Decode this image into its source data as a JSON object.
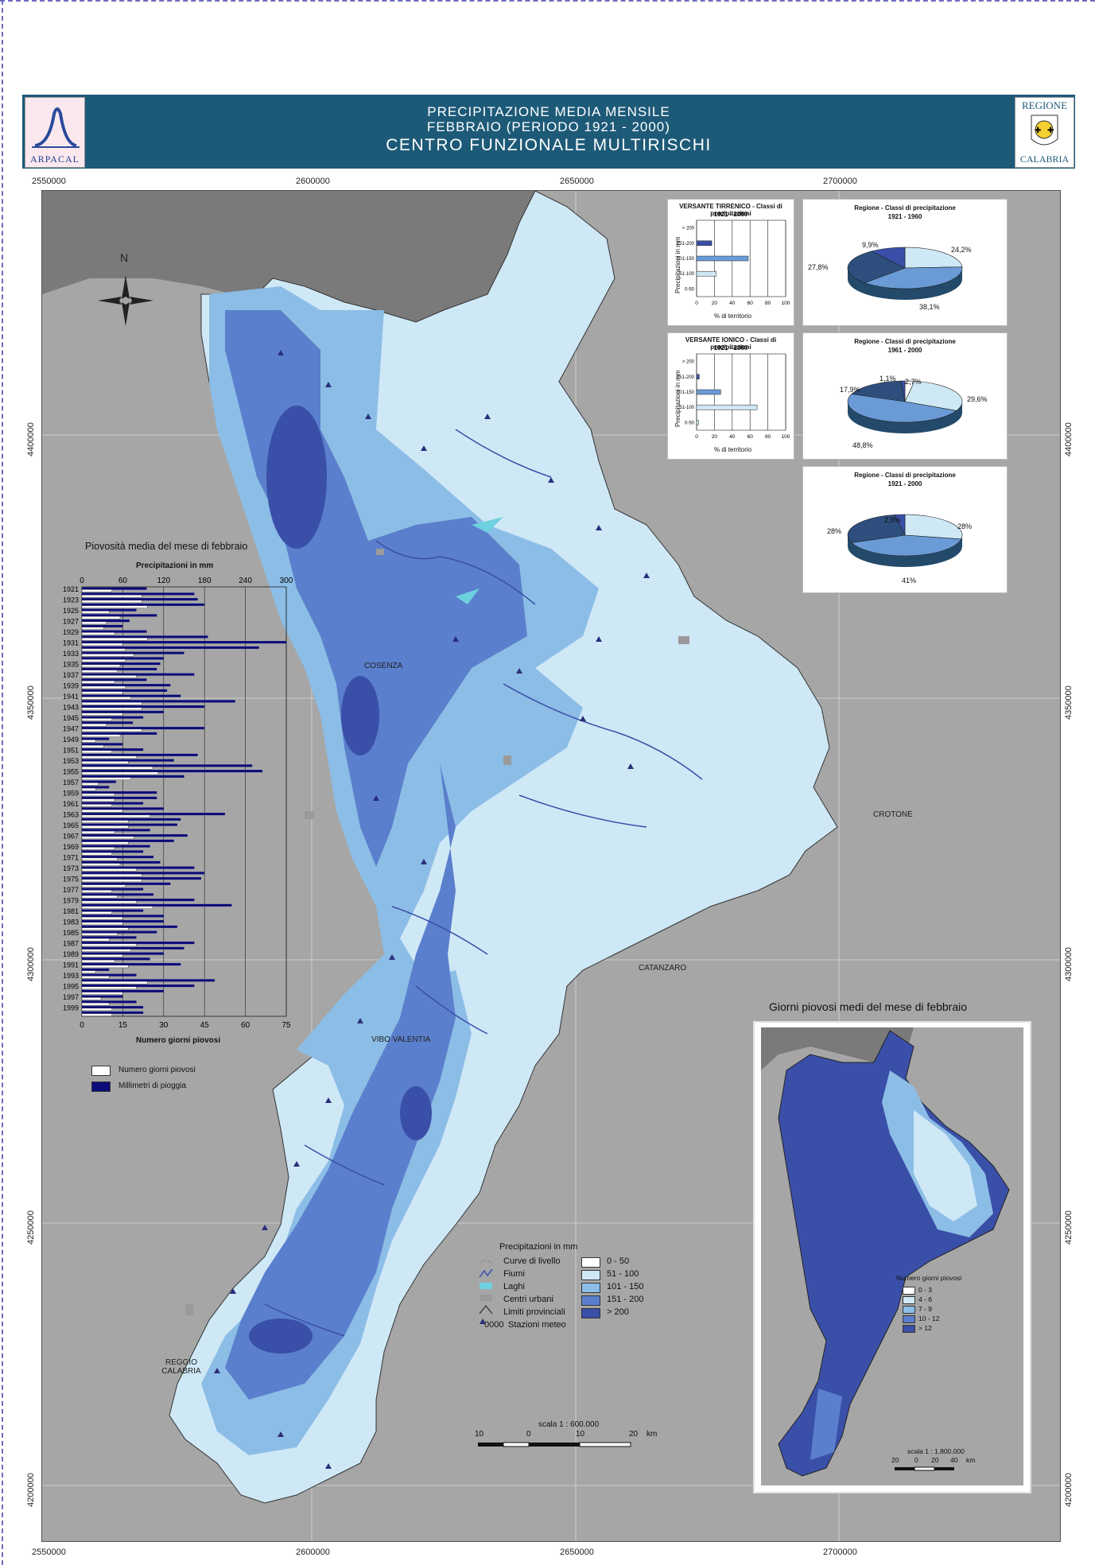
{
  "header": {
    "line1": "PRECIPITAZIONE MEDIA MENSILE",
    "line2": "FEBBRAIO (PERIODO 1921 - 2000)",
    "line3": "CENTRO FUNZIONALE MULTIRISCHI",
    "logo_left": "ARPACAL",
    "logo_right_top": "REGIONE",
    "logo_right_bottom": "CALABRIA"
  },
  "axes": {
    "top": [
      "2550000",
      "2600000",
      "2650000",
      "2700000"
    ],
    "bottom": [
      "2550000",
      "2600000",
      "2650000",
      "2700000"
    ],
    "left": [
      "4400000",
      "4350000",
      "4300000",
      "4250000",
      "4200000"
    ],
    "right": [
      "4400000",
      "4350000",
      "4300000",
      "4250000",
      "4200000"
    ]
  },
  "north": "N",
  "cities": {
    "cosenza": "COSENZA",
    "crotone": "CROTONE",
    "catanzaro": "CATANZARO",
    "vibo": "VIBO VALENTIA",
    "reggio": "REGGIO CALABRIA"
  },
  "bar_tirreno": {
    "title1": "VERSANTE TIRRENICO - Classi di precipitazioni",
    "title2": "1921 - 2000",
    "ylabel": "Precipitazioni in mm",
    "xlabel": "% di territorio",
    "categories": [
      "> 200",
      "151-200",
      "101-150",
      "51-100",
      "0-50"
    ],
    "values": [
      0,
      17,
      58,
      22,
      0
    ],
    "ticks": [
      "0",
      "20",
      "40",
      "60",
      "80",
      "100"
    ]
  },
  "bar_ionico": {
    "title1": "VERSANTE IONICO - Classi di precipitazioni",
    "title2": "1921 - 2000",
    "ylabel": "Precipitazioni in mm",
    "xlabel": "% di territorio",
    "categories": [
      "> 200",
      "151-200",
      "101-150",
      "51-100",
      "0-50"
    ],
    "values": [
      0,
      3,
      27,
      68,
      2
    ],
    "ticks": [
      "0",
      "20",
      "40",
      "60",
      "80",
      "100"
    ]
  },
  "pie1": {
    "title1": "Regione - Classi di precipitazione",
    "title2": "1921 - 1960",
    "labels": [
      "24,2%",
      "38,1%",
      "27,8%",
      "9,9%"
    ],
    "values": [
      24.2,
      38.1,
      27.8,
      9.9
    ]
  },
  "pie2": {
    "title1": "Regione - Classi di precipitazione",
    "title2": "1961 - 2000",
    "labels": [
      "2,7%",
      "29,6%",
      "48,8%",
      "17,9%",
      "1,1%"
    ],
    "values": [
      2.7,
      29.6,
      48.8,
      17.9,
      1.1
    ]
  },
  "pie3": {
    "title1": "Regione - Classi di precipitazione",
    "title2": "1921 - 2000",
    "labels": [
      "28%",
      "41%",
      "28%",
      "2,9%"
    ],
    "values": [
      28,
      41,
      28,
      2.9
    ]
  },
  "annual": {
    "title": "Piovosità media del mese di febbraio",
    "top_label": "Precipitazioni in mm",
    "top_ticks": [
      "0",
      "60",
      "120",
      "180",
      "240",
      "300"
    ],
    "bottom_label": "Numero giorni piovosi",
    "bottom_ticks": [
      "0",
      "15",
      "30",
      "45",
      "60",
      "75"
    ],
    "year_labels": [
      "1921",
      "1923",
      "1925",
      "1927",
      "1929",
      "1931",
      "1933",
      "1935",
      "1937",
      "1939",
      "1941",
      "1943",
      "1945",
      "1947",
      "1949",
      "1951",
      "1953",
      "1955",
      "1957",
      "1959",
      "1961",
      "1963",
      "1965",
      "1967",
      "1969",
      "1971",
      "1973",
      "1975",
      "1977",
      "1979",
      "1981",
      "1983",
      "1985",
      "1987",
      "1989",
      "1991",
      "1993",
      "1995",
      "1997",
      "1999"
    ],
    "legend_days": "Numero giorni piovosi",
    "legend_mm": "Millimetri di pioggia"
  },
  "chart_data": {
    "type": "bar",
    "title": "Piovosità media del mese di febbraio",
    "xlabel_top": "Precipitazioni in mm",
    "xlabel_bottom": "Numero giorni piovosi",
    "xlim_mm": [
      0,
      300
    ],
    "xlim_days": [
      0,
      75
    ],
    "years": [
      1921,
      1922,
      1923,
      1924,
      1925,
      1926,
      1927,
      1928,
      1929,
      1930,
      1931,
      1932,
      1933,
      1934,
      1935,
      1936,
      1937,
      1938,
      1939,
      1940,
      1941,
      1942,
      1943,
      1944,
      1945,
      1946,
      1947,
      1948,
      1949,
      1950,
      1951,
      1952,
      1953,
      1954,
      1955,
      1956,
      1957,
      1958,
      1959,
      1960,
      1961,
      1962,
      1963,
      1964,
      1965,
      1966,
      1967,
      1968,
      1969,
      1970,
      1971,
      1972,
      1973,
      1974,
      1975,
      1976,
      1977,
      1978,
      1979,
      1980,
      1981,
      1982,
      1983,
      1984,
      1985,
      1986,
      1987,
      1988,
      1989,
      1990,
      1991,
      1992,
      1993,
      1994,
      1995,
      1996,
      1997,
      1998,
      1999,
      2000
    ],
    "series": [
      {
        "name": "Millimetri di pioggia",
        "values": [
          95,
          165,
          170,
          180,
          80,
          110,
          70,
          60,
          95,
          185,
          300,
          260,
          150,
          120,
          115,
          110,
          165,
          95,
          130,
          125,
          145,
          225,
          180,
          120,
          90,
          75,
          180,
          110,
          40,
          60,
          90,
          170,
          135,
          250,
          265,
          150,
          50,
          40,
          110,
          110,
          90,
          120,
          210,
          145,
          140,
          100,
          155,
          135,
          100,
          90,
          105,
          115,
          165,
          180,
          175,
          130,
          90,
          105,
          165,
          220,
          90,
          120,
          120,
          140,
          110,
          80,
          165,
          150,
          120,
          100,
          145,
          40,
          80,
          195,
          165,
          120,
          60,
          80,
          90,
          90
        ]
      },
      {
        "name": "Numero giorni piovosi",
        "values": [
          11,
          22,
          22,
          24,
          10,
          14,
          9,
          8,
          12,
          24,
          15,
          16,
          19,
          16,
          14,
          13,
          20,
          12,
          16,
          15,
          18,
          22,
          22,
          15,
          11,
          9,
          22,
          14,
          5,
          8,
          11,
          20,
          17,
          26,
          28,
          18,
          6,
          5,
          12,
          12,
          11,
          15,
          25,
          17,
          17,
          12,
          19,
          17,
          12,
          11,
          13,
          14,
          20,
          22,
          22,
          16,
          11,
          13,
          20,
          26,
          11,
          15,
          15,
          17,
          13,
          10,
          20,
          18,
          15,
          12,
          17,
          5,
          10,
          24,
          20,
          15,
          7,
          10,
          11,
          11
        ]
      }
    ]
  },
  "inset": {
    "title": "Giorni piovosi medi del mese di febbraio",
    "legend_title": "Numero giorni piovosi",
    "classes": [
      "0 - 3",
      "4 - 6",
      "7 - 9",
      "10 - 12",
      "> 12"
    ],
    "colors": [
      "#ffffff",
      "#cfe8f6",
      "#8cbde6",
      "#5a7fcc",
      "#3a4fa8"
    ],
    "scale": "scala 1 : 1.800.000",
    "scale_ticks": [
      "20",
      "0",
      "20",
      "40",
      "km"
    ]
  },
  "legend": {
    "title": "Precipitazioni in mm",
    "symbols": [
      "Curve di livello",
      "Fiumi",
      "Laghi",
      "Centri urbani",
      "Limiti provinciali",
      "Stazioni meteo"
    ],
    "station_code": "0000",
    "classes": [
      "0 - 50",
      "51 - 100",
      "101 - 150",
      "151 - 200",
      "> 200"
    ],
    "colors": [
      "#ffffff",
      "#cfe8f6",
      "#8cbde6",
      "#5a7fcc",
      "#3a4fa8"
    ]
  },
  "scale": {
    "label": "scala 1 : 600.000",
    "ticks": [
      "10",
      "0",
      "10",
      "20",
      "km"
    ]
  }
}
